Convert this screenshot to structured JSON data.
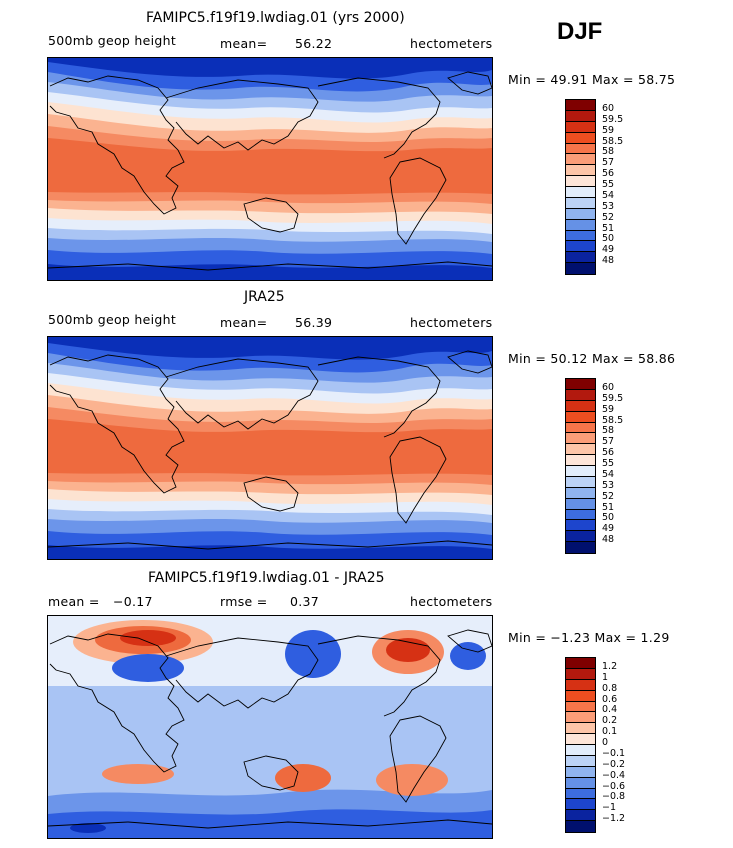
{
  "season": "DJF",
  "panels": [
    {
      "title": "FAMIPC5.f19f19.lwdiag.01 (yrs 2000)",
      "left_label": "500mb geop height",
      "stat1_label": "mean=",
      "stat1_value": "56.22",
      "stat2_label": "",
      "stat2_value": "",
      "units": "hectometers",
      "minmax": "Min =  49.91  Max =  58.75",
      "colorbar_labels": [
        "60",
        "59.5",
        "59",
        "58.5",
        "58",
        "57",
        "56",
        "55",
        "54",
        "53",
        "52",
        "51",
        "50",
        "49",
        "48"
      ]
    },
    {
      "title": "JRA25",
      "left_label": "500mb geop height",
      "stat1_label": "mean=",
      "stat1_value": "56.39",
      "stat2_label": "",
      "stat2_value": "",
      "units": "hectometers",
      "minmax": "Min =  50.12  Max =  58.86",
      "colorbar_labels": [
        "60",
        "59.5",
        "59",
        "58.5",
        "58",
        "57",
        "56",
        "55",
        "54",
        "53",
        "52",
        "51",
        "50",
        "49",
        "48"
      ]
    },
    {
      "title": "FAMIPC5.f19f19.lwdiag.01 - JRA25",
      "left_label": "",
      "stat1_label": "mean =",
      "stat1_value": "−0.17",
      "stat2_label": "rmse =",
      "stat2_value": "0.37",
      "units": "hectometers",
      "minmax": "Min =  −1.23  Max =   1.29",
      "colorbar_labels": [
        "1.2",
        "1",
        "0.8",
        "0.6",
        "0.4",
        "0.2",
        "0.1",
        "0",
        "−0.1",
        "−0.2",
        "−0.4",
        "−0.6",
        "−0.8",
        "−1",
        "−1.2"
      ]
    }
  ],
  "colorbar_colors": [
    "#7f0000",
    "#b2190e",
    "#d63114",
    "#ee4e20",
    "#f7754a",
    "#fb9d78",
    "#fdc5a8",
    "#fde5d8",
    "#e2edfb",
    "#bcd3f6",
    "#90b4ef",
    "#6591e6",
    "#3d6ddf",
    "#1d45cd",
    "#0a239f",
    "#00106e"
  ],
  "field_colors": {
    "deep_blue": "#0a2fb8",
    "blue": "#2f5ee0",
    "mid_blue": "#6c95ea",
    "light_blue": "#a9c4f4",
    "pale": "#e6eefb",
    "cream": "#fde3d1",
    "peach": "#fbb390",
    "salmon": "#f58a62",
    "orange": "#ee6a3e",
    "red": "#d63114",
    "dark_red": "#a3140b"
  }
}
